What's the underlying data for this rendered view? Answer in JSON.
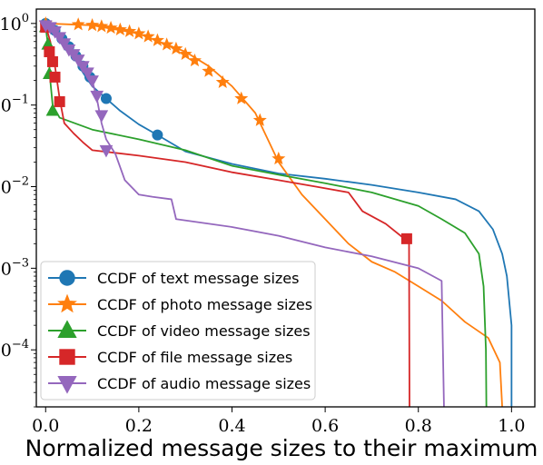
{
  "chart_data": {
    "type": "line",
    "title": "",
    "xlabel": "Normalized message sizes to their maximum",
    "ylabel": "",
    "x_ticks": [
      {
        "value": 0.0,
        "label": "0.0"
      },
      {
        "value": 0.2,
        "label": "0.2"
      },
      {
        "value": 0.4,
        "label": "0.4"
      },
      {
        "value": 0.6,
        "label": "0.6"
      },
      {
        "value": 0.8,
        "label": "0.8"
      },
      {
        "value": 1.0,
        "label": "1.0"
      }
    ],
    "y_ticks": [
      {
        "value": 1,
        "base": "10",
        "exp": "0"
      },
      {
        "value": 0.1,
        "base": "10",
        "exp": "−1"
      },
      {
        "value": 0.01,
        "base": "10",
        "exp": "−2"
      },
      {
        "value": 0.001,
        "base": "10",
        "exp": "−3"
      },
      {
        "value": 0.0001,
        "base": "10",
        "exp": "−4"
      }
    ],
    "x_range": [
      -0.02,
      1.05
    ],
    "y_range": [
      2e-05,
      1.5
    ],
    "y_scale": "log",
    "grid": false,
    "legend_position": "bottom-left",
    "series": [
      {
        "name": "CCDF of text message sizes",
        "color": "#1f77b4",
        "marker": "circle",
        "points": [
          [
            0,
            1.0
          ],
          [
            0.02,
            0.85
          ],
          [
            0.04,
            0.6
          ],
          [
            0.06,
            0.4
          ],
          [
            0.08,
            0.25
          ],
          [
            0.1,
            0.17
          ],
          [
            0.13,
            0.12
          ],
          [
            0.16,
            0.085
          ],
          [
            0.2,
            0.058
          ],
          [
            0.24,
            0.043
          ],
          [
            0.3,
            0.027
          ],
          [
            0.4,
            0.019
          ],
          [
            0.5,
            0.0145
          ],
          [
            0.6,
            0.0125
          ],
          [
            0.7,
            0.0105
          ],
          [
            0.8,
            0.0085
          ],
          [
            0.88,
            0.007
          ],
          [
            0.93,
            0.005
          ],
          [
            0.96,
            0.003
          ],
          [
            0.98,
            0.0015
          ],
          [
            0.99,
            0.0008
          ],
          [
            1.0,
            0.0002
          ],
          [
            1.0,
            2e-05
          ]
        ],
        "markers": [
          [
            0,
            1.0
          ],
          [
            0.02,
            0.82
          ],
          [
            0.035,
            0.65
          ],
          [
            0.05,
            0.52
          ],
          [
            0.065,
            0.4
          ],
          [
            0.08,
            0.3
          ],
          [
            0.095,
            0.22
          ],
          [
            0.13,
            0.12
          ],
          [
            0.24,
            0.043
          ]
        ]
      },
      {
        "name": "CCDF of photo message sizes",
        "color": "#ff7f0e",
        "marker": "star",
        "points": [
          [
            0,
            1.0
          ],
          [
            0.1,
            0.95
          ],
          [
            0.2,
            0.75
          ],
          [
            0.3,
            0.45
          ],
          [
            0.35,
            0.3
          ],
          [
            0.4,
            0.17
          ],
          [
            0.45,
            0.08
          ],
          [
            0.5,
            0.02
          ],
          [
            0.55,
            0.008
          ],
          [
            0.6,
            0.004
          ],
          [
            0.65,
            0.002
          ],
          [
            0.7,
            0.0012
          ],
          [
            0.75,
            0.0009
          ],
          [
            0.8,
            0.0006
          ],
          [
            0.85,
            0.0004
          ],
          [
            0.9,
            0.00022
          ],
          [
            0.95,
            0.00014
          ],
          [
            0.975,
            7e-05
          ],
          [
            0.98,
            2e-05
          ]
        ],
        "markers": [
          [
            0,
            1.0
          ],
          [
            0.07,
            0.97
          ],
          [
            0.1,
            0.95
          ],
          [
            0.12,
            0.92
          ],
          [
            0.14,
            0.88
          ],
          [
            0.16,
            0.84
          ],
          [
            0.18,
            0.8
          ],
          [
            0.2,
            0.75
          ],
          [
            0.22,
            0.69
          ],
          [
            0.24,
            0.62
          ],
          [
            0.26,
            0.55
          ],
          [
            0.28,
            0.49
          ],
          [
            0.3,
            0.42
          ],
          [
            0.32,
            0.35
          ],
          [
            0.35,
            0.26
          ],
          [
            0.38,
            0.19
          ],
          [
            0.42,
            0.12
          ],
          [
            0.46,
            0.065
          ],
          [
            0.5,
            0.022
          ]
        ]
      },
      {
        "name": "CCDF of video message sizes",
        "color": "#2ca02c",
        "marker": "triangle-up",
        "points": [
          [
            0,
            0.9
          ],
          [
            0.005,
            0.55
          ],
          [
            0.01,
            0.2
          ],
          [
            0.015,
            0.1
          ],
          [
            0.03,
            0.07
          ],
          [
            0.1,
            0.05
          ],
          [
            0.2,
            0.038
          ],
          [
            0.3,
            0.028
          ],
          [
            0.4,
            0.018
          ],
          [
            0.5,
            0.014
          ],
          [
            0.6,
            0.011
          ],
          [
            0.7,
            0.0085
          ],
          [
            0.8,
            0.0058
          ],
          [
            0.85,
            0.004
          ],
          [
            0.9,
            0.0027
          ],
          [
            0.93,
            0.0015
          ],
          [
            0.94,
            0.0006
          ],
          [
            0.945,
            0.0001
          ],
          [
            0.946,
            2e-05
          ]
        ],
        "markers": [
          [
            0,
            0.9
          ],
          [
            0.005,
            0.55
          ],
          [
            0.008,
            0.24
          ],
          [
            0.015,
            0.085
          ]
        ]
      },
      {
        "name": "CCDF of file message sizes",
        "color": "#d62728",
        "marker": "square",
        "points": [
          [
            0,
            0.95
          ],
          [
            0.01,
            0.6
          ],
          [
            0.02,
            0.3
          ],
          [
            0.03,
            0.12
          ],
          [
            0.04,
            0.06
          ],
          [
            0.06,
            0.045
          ],
          [
            0.08,
            0.035
          ],
          [
            0.1,
            0.028
          ],
          [
            0.2,
            0.024
          ],
          [
            0.3,
            0.02
          ],
          [
            0.4,
            0.015
          ],
          [
            0.5,
            0.012
          ],
          [
            0.58,
            0.01
          ],
          [
            0.65,
            0.0085
          ],
          [
            0.68,
            0.005
          ],
          [
            0.73,
            0.0035
          ],
          [
            0.77,
            0.0023
          ],
          [
            0.78,
            0.002
          ],
          [
            0.781,
            2e-05
          ]
        ],
        "markers": [
          [
            0,
            0.9
          ],
          [
            0.008,
            0.45
          ],
          [
            0.015,
            0.34
          ],
          [
            0.02,
            0.22
          ],
          [
            0.03,
            0.11
          ],
          [
            0.775,
            0.0023
          ]
        ]
      },
      {
        "name": "CCDF of audio message sizes",
        "color": "#9467bd",
        "marker": "triangle-down",
        "points": [
          [
            0,
            1.0
          ],
          [
            0.02,
            0.8
          ],
          [
            0.05,
            0.5
          ],
          [
            0.08,
            0.3
          ],
          [
            0.1,
            0.2
          ],
          [
            0.11,
            0.12
          ],
          [
            0.12,
            0.06
          ],
          [
            0.13,
            0.038
          ],
          [
            0.15,
            0.025
          ],
          [
            0.17,
            0.012
          ],
          [
            0.2,
            0.008
          ],
          [
            0.23,
            0.0075
          ],
          [
            0.27,
            0.007
          ],
          [
            0.28,
            0.004
          ],
          [
            0.4,
            0.0032
          ],
          [
            0.5,
            0.0025
          ],
          [
            0.6,
            0.0018
          ],
          [
            0.7,
            0.0014
          ],
          [
            0.8,
            0.001
          ],
          [
            0.85,
            0.0007
          ],
          [
            0.855,
            2e-05
          ]
        ],
        "markers": [
          [
            0,
            0.95
          ],
          [
            0.01,
            0.9
          ],
          [
            0.02,
            0.8
          ],
          [
            0.03,
            0.68
          ],
          [
            0.04,
            0.57
          ],
          [
            0.05,
            0.48
          ],
          [
            0.06,
            0.42
          ],
          [
            0.07,
            0.36
          ],
          [
            0.08,
            0.3
          ],
          [
            0.09,
            0.25
          ],
          [
            0.1,
            0.2
          ],
          [
            0.11,
            0.13
          ],
          [
            0.12,
            0.075
          ],
          [
            0.13,
            0.028
          ]
        ]
      }
    ]
  }
}
